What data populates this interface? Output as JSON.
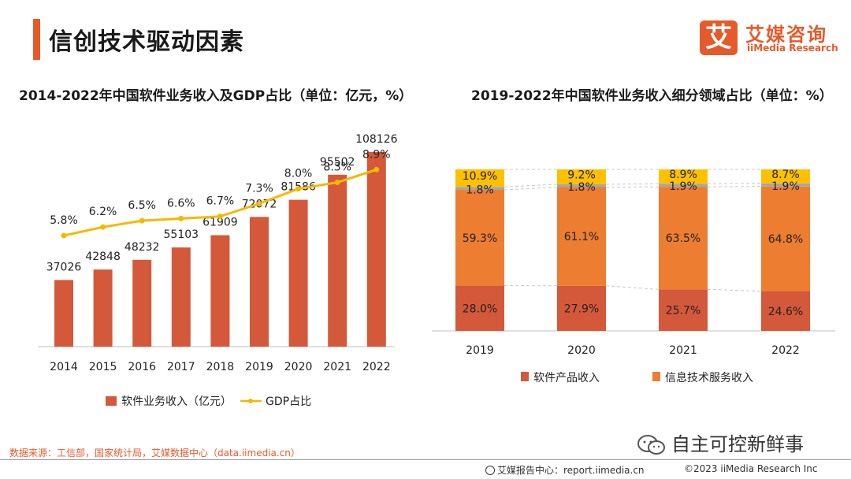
{
  "page": {
    "title": "信创技术驱动因素",
    "accent_color": "#e55a2b"
  },
  "logo": {
    "mark": "艾",
    "name_cn": "艾媒咨询",
    "name_en": "iiMedia Research"
  },
  "chart_data": [
    {
      "type": "bar+line",
      "title": "2014-2022年中国软件业务收入及GDP占比（单位：亿元，%）",
      "categories": [
        "2014",
        "2015",
        "2016",
        "2017",
        "2018",
        "2019",
        "2020",
        "2021",
        "2022"
      ],
      "series": [
        {
          "name": "软件业务收入（亿元）",
          "type": "bar",
          "color": "#d4583a",
          "values": [
            37026,
            42848,
            48232,
            55103,
            61909,
            72072,
            81586,
            95502,
            108126
          ],
          "labels": [
            "37026",
            "42848",
            "48232",
            "55103",
            "61909",
            "72072",
            "81586",
            "95502",
            "108126"
          ]
        },
        {
          "name": "GDP占比",
          "type": "line",
          "color": "#f5b800",
          "values": [
            5.8,
            6.2,
            6.5,
            6.6,
            6.7,
            7.3,
            8.0,
            8.3,
            8.9
          ],
          "labels": [
            "5.8%",
            "6.2%",
            "6.5%",
            "6.6%",
            "6.7%",
            "7.3%",
            "8.0%",
            "8.3%",
            "8.9%"
          ]
        }
      ],
      "bar_range": [
        0,
        130000
      ],
      "line_range": [
        0,
        10
      ],
      "legend_position": "bottom"
    },
    {
      "type": "stacked-bar-100",
      "title": "2019-2022年中国软件业务收入细分领域占比（单位：%）",
      "categories": [
        "2019",
        "2020",
        "2021",
        "2022"
      ],
      "series": [
        {
          "name": "软件产品收入",
          "color": "#d4583a",
          "values": [
            28.0,
            27.9,
            25.7,
            24.6
          ],
          "labels": [
            "28.0%",
            "27.9%",
            "25.7%",
            "24.6%"
          ],
          "show_in_legend": true
        },
        {
          "name": "信息技术服务收入",
          "color": "#ed7d31",
          "values": [
            59.3,
            61.1,
            63.5,
            64.8
          ],
          "labels": [
            "59.3%",
            "61.1%",
            "63.5%",
            "64.8%"
          ],
          "show_in_legend": true
        },
        {
          "name": "",
          "color": "#a6a6a6",
          "values": [
            1.8,
            1.8,
            1.9,
            1.9
          ],
          "labels": [
            "1.8%",
            "1.8%",
            "1.9%",
            "1.9%"
          ],
          "show_in_legend": false
        },
        {
          "name": "",
          "color": "#ffc000",
          "values": [
            10.9,
            9.2,
            8.9,
            8.7
          ],
          "labels": [
            "10.9%",
            "9.2%",
            "8.9%",
            "8.7%"
          ],
          "show_in_legend": false
        }
      ],
      "ylim": [
        0,
        100
      ],
      "legend_position": "bottom"
    }
  ],
  "footer": {
    "source": "数据来源：工信部，国家统计局，艾媒数据中心（data.iimedia.cn）",
    "wechat_account": "自主可控新鲜事",
    "report_site": "艾媒报告中心：report.iimedia.cn",
    "copyright": "©2023  iiMedia Research  Inc"
  }
}
